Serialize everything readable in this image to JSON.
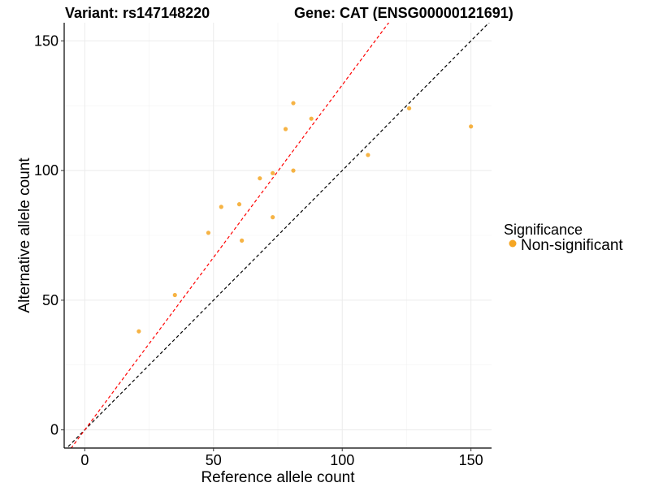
{
  "chart_data": {
    "type": "scatter",
    "title_left": "Variant: rs147148220",
    "title_right": "Gene: CAT (ENSG00000121691)",
    "xlabel": "Reference allele count",
    "ylabel": "Alternative allele count",
    "xlim": [
      -8,
      158
    ],
    "ylim": [
      -7,
      157
    ],
    "x_ticks": [
      0,
      50,
      100,
      150
    ],
    "y_ticks": [
      0,
      50,
      100,
      150
    ],
    "grid": true,
    "legend": {
      "title": "Significance",
      "position": "right",
      "entries": [
        {
          "label": "Non-significant",
          "color": "#f5a623"
        }
      ]
    },
    "series": [
      {
        "name": "Non-significant",
        "color": "#f5a623",
        "points": [
          {
            "x": 21,
            "y": 38
          },
          {
            "x": 35,
            "y": 52
          },
          {
            "x": 48,
            "y": 76
          },
          {
            "x": 53,
            "y": 86
          },
          {
            "x": 60,
            "y": 87
          },
          {
            "x": 61,
            "y": 73
          },
          {
            "x": 68,
            "y": 97
          },
          {
            "x": 73,
            "y": 99
          },
          {
            "x": 73,
            "y": 82
          },
          {
            "x": 78,
            "y": 116
          },
          {
            "x": 81,
            "y": 126
          },
          {
            "x": 81,
            "y": 100
          },
          {
            "x": 88,
            "y": 120
          },
          {
            "x": 110,
            "y": 106
          },
          {
            "x": 126,
            "y": 124
          },
          {
            "x": 150,
            "y": 117
          }
        ]
      }
    ],
    "reference_lines": [
      {
        "slope": 1.0,
        "intercept": 0,
        "color": "#000000",
        "style": "dashed"
      },
      {
        "slope": 1.33,
        "intercept": 0,
        "color": "#ff0000",
        "style": "dashed"
      }
    ]
  }
}
